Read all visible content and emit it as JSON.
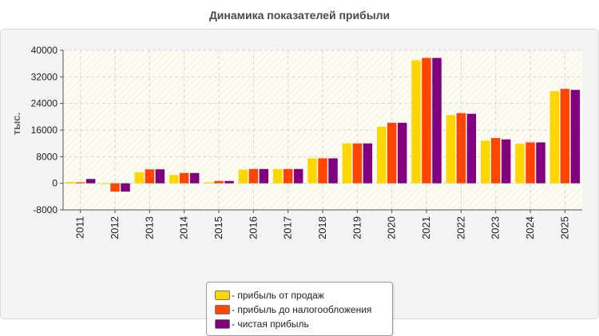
{
  "chart_data": {
    "type": "bar",
    "title": "Динамика показателей прибыли",
    "ylabel": "тыс.",
    "xlabel": "",
    "categories": [
      "2011",
      "2012",
      "2013",
      "2014",
      "2015",
      "2016",
      "2017",
      "2018",
      "2019",
      "2020",
      "2021",
      "2022",
      "2023",
      "2024",
      "2025"
    ],
    "ylim": [
      -8000,
      40000
    ],
    "yticks": [
      "-8000",
      "0",
      "8000",
      "16000",
      "24000",
      "32000",
      "40000"
    ],
    "grid": true,
    "legend_position": "bottom",
    "series": [
      {
        "name": "- прибыль от продаж",
        "color": "#ffd700",
        "values": [
          400,
          -200,
          3300,
          2500,
          300,
          4100,
          4300,
          7500,
          12000,
          17000,
          37000,
          20500,
          12800,
          11900,
          27700
        ]
      },
      {
        "name": "- прибыль до налогообложения",
        "color": "#ff4500",
        "values": [
          300,
          -2500,
          4200,
          3100,
          700,
          4300,
          4300,
          7500,
          12000,
          18200,
          37700,
          21100,
          13600,
          12300,
          28400
        ]
      },
      {
        "name": "- чистая прибыль",
        "color": "#800080",
        "values": [
          1300,
          -2500,
          4200,
          3100,
          700,
          4300,
          4300,
          7500,
          12000,
          18200,
          37700,
          20900,
          13200,
          12300,
          28100
        ]
      }
    ]
  }
}
